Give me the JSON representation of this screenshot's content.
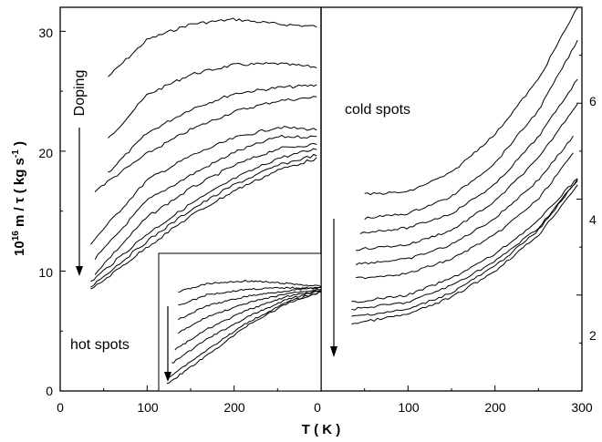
{
  "figure": {
    "ylabel_main": "10",
    "ylabel_sup": "16",
    "ylabel_rest": " m / τ   ( kg s",
    "ylabel_sup2": "-1",
    "ylabel_close": " )",
    "xlabel": "T ( K )"
  },
  "chart_data": [
    {
      "panel": "left",
      "type": "line",
      "xlim": [
        0,
        300
      ],
      "ylim": [
        0,
        32
      ],
      "xticks": [
        "0",
        "100",
        "200",
        "0"
      ],
      "yticks": [
        "0",
        "10",
        "20",
        "30"
      ],
      "annotations": [
        "Doping"
      ],
      "series": [
        {
          "x": [
            55,
            100,
            150,
            200,
            250,
            295
          ],
          "y": [
            26.2,
            29.3,
            30.6,
            31.0,
            30.6,
            30.4
          ]
        },
        {
          "x": [
            55,
            100,
            150,
            200,
            250,
            295
          ],
          "y": [
            21.0,
            24.7,
            26.4,
            27.2,
            27.3,
            27.0
          ]
        },
        {
          "x": [
            55,
            100,
            150,
            200,
            250,
            295
          ],
          "y": [
            18.2,
            21.5,
            23.5,
            24.8,
            25.3,
            25.5
          ]
        },
        {
          "x": [
            40,
            100,
            150,
            200,
            250,
            295
          ],
          "y": [
            16.7,
            19.8,
            21.8,
            23.3,
            24.2,
            24.5
          ]
        },
        {
          "x": [
            35,
            100,
            150,
            200,
            250,
            295
          ],
          "y": [
            12.3,
            17.6,
            19.6,
            21.1,
            22.0,
            21.8
          ]
        },
        {
          "x": [
            40,
            100,
            150,
            200,
            250,
            295
          ],
          "y": [
            11.0,
            15.9,
            18.0,
            19.9,
            21.2,
            21.2
          ]
        },
        {
          "x": [
            40,
            100,
            150,
            200,
            250,
            295
          ],
          "y": [
            9.8,
            14.5,
            16.9,
            18.8,
            20.2,
            20.6
          ]
        },
        {
          "x": [
            35,
            100,
            150,
            200,
            250,
            295
          ],
          "y": [
            9.1,
            13.1,
            15.6,
            17.7,
            19.4,
            20.2
          ]
        },
        {
          "x": [
            35,
            100,
            150,
            200,
            250,
            295
          ],
          "y": [
            8.7,
            12.5,
            15.1,
            17.2,
            18.8,
            19.7
          ]
        },
        {
          "x": [
            35,
            100,
            150,
            200,
            250,
            295
          ],
          "y": [
            8.4,
            12.0,
            14.6,
            16.7,
            18.4,
            19.4
          ]
        }
      ]
    },
    {
      "panel": "inset",
      "type": "line",
      "annotations": [
        "hot spots"
      ],
      "series": [
        {
          "x": [
            0.12,
            0.3,
            0.55,
            0.8,
            1.0
          ],
          "y": [
            0.28,
            0.22,
            0.2,
            0.22,
            0.24
          ]
        },
        {
          "x": [
            0.12,
            0.3,
            0.55,
            0.8,
            1.0
          ],
          "y": [
            0.38,
            0.3,
            0.26,
            0.25,
            0.25
          ]
        },
        {
          "x": [
            0.12,
            0.3,
            0.55,
            0.8,
            1.0
          ],
          "y": [
            0.48,
            0.38,
            0.31,
            0.27,
            0.25
          ]
        },
        {
          "x": [
            0.12,
            0.3,
            0.55,
            0.8,
            1.0
          ],
          "y": [
            0.58,
            0.46,
            0.36,
            0.29,
            0.26
          ]
        },
        {
          "x": [
            0.1,
            0.3,
            0.55,
            0.8,
            1.0
          ],
          "y": [
            0.7,
            0.55,
            0.41,
            0.31,
            0.27
          ]
        },
        {
          "x": [
            0.08,
            0.3,
            0.55,
            0.8,
            1.0
          ],
          "y": [
            0.8,
            0.62,
            0.46,
            0.33,
            0.27
          ]
        },
        {
          "x": [
            0.06,
            0.3,
            0.55,
            0.8,
            1.0
          ],
          "y": [
            0.9,
            0.7,
            0.5,
            0.35,
            0.28
          ]
        },
        {
          "x": [
            0.05,
            0.3,
            0.55,
            0.8,
            1.0
          ],
          "y": [
            0.95,
            0.74,
            0.52,
            0.36,
            0.28
          ]
        }
      ]
    },
    {
      "panel": "right",
      "type": "line",
      "xlim": [
        0,
        300
      ],
      "ylim": [
        0,
        8
      ],
      "xticks": [
        "100",
        "200",
        "300"
      ],
      "yticks": [
        "2",
        "4",
        "6"
      ],
      "annotations": [
        "cold spots"
      ],
      "series": [
        {
          "x": [
            50,
            100,
            150,
            200,
            250,
            295
          ],
          "y": [
            4.1,
            4.15,
            4.55,
            5.35,
            6.5,
            8.0
          ]
        },
        {
          "x": [
            50,
            100,
            150,
            200,
            250,
            295
          ],
          "y": [
            3.6,
            3.7,
            4.05,
            4.75,
            5.85,
            7.3
          ]
        },
        {
          "x": [
            45,
            100,
            150,
            200,
            250,
            295
          ],
          "y": [
            3.3,
            3.4,
            3.7,
            4.3,
            5.3,
            6.5
          ]
        },
        {
          "x": [
            40,
            100,
            150,
            200,
            250,
            295
          ],
          "y": [
            2.95,
            3.05,
            3.35,
            3.95,
            4.85,
            6.0
          ]
        },
        {
          "x": [
            40,
            100,
            150,
            200,
            250,
            290
          ],
          "y": [
            2.65,
            2.75,
            3.05,
            3.6,
            4.4,
            5.3
          ]
        },
        {
          "x": [
            40,
            100,
            150,
            200,
            250,
            290
          ],
          "y": [
            2.35,
            2.45,
            2.75,
            3.25,
            4.0,
            4.95
          ]
        },
        {
          "x": [
            35,
            100,
            150,
            200,
            250,
            295
          ],
          "y": [
            1.85,
            2.0,
            2.35,
            2.85,
            3.55,
            4.45
          ]
        },
        {
          "x": [
            35,
            100,
            150,
            200,
            250,
            295
          ],
          "y": [
            1.7,
            1.85,
            2.2,
            2.7,
            3.4,
            4.4
          ]
        },
        {
          "x": [
            35,
            100,
            150,
            200,
            250,
            295
          ],
          "y": [
            1.55,
            1.7,
            2.05,
            2.6,
            3.35,
            4.4
          ]
        },
        {
          "x": [
            35,
            100,
            150,
            200,
            250,
            295
          ],
          "y": [
            1.4,
            1.6,
            1.95,
            2.5,
            3.25,
            4.3
          ]
        }
      ]
    }
  ]
}
